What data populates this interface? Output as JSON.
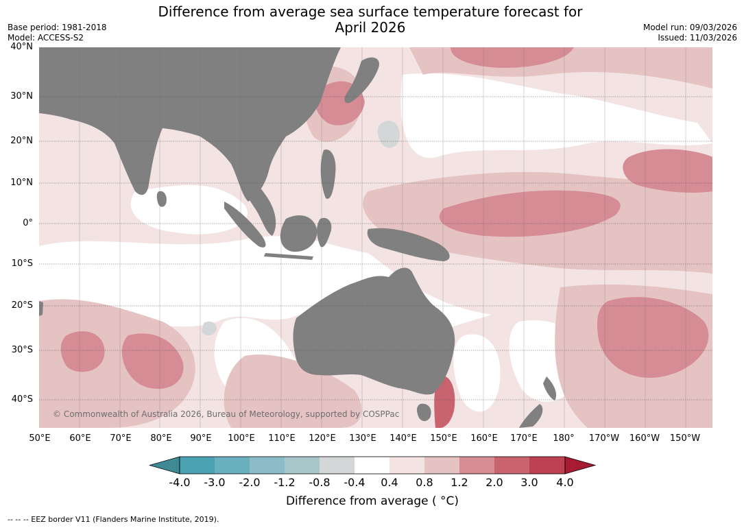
{
  "title": {
    "line1": "Difference from average sea surface temperature forecast for",
    "line2": "April 2026"
  },
  "meta": {
    "base_period": "Base period: 1981-2018",
    "model": "Model: ACCESS-S2",
    "model_run": "Model run: 09/03/2026",
    "issued": "Issued: 11/03/2026"
  },
  "latitude_labels": [
    "40°N",
    "30°N",
    "20°N",
    "10°N",
    "0°",
    "10°S",
    "20°S",
    "30°S",
    "40°S"
  ],
  "longitude_labels": [
    "50°E",
    "60°E",
    "70°E",
    "80°E",
    "90°E",
    "100°E",
    "110°E",
    "120°E",
    "130°E",
    "140°E",
    "150°E",
    "160°E",
    "170°E",
    "180°",
    "170°W",
    "160°W",
    "150°W"
  ],
  "copyright": "© Commonwealth of Australia 2026, Bureau of Meteorology, supported by COSPPac",
  "colorbar": {
    "title": "Difference from average ( °C)",
    "labels": [
      "-4.0",
      "-3.0",
      "-2.0",
      "-1.2",
      "-0.8",
      "-0.4",
      "0.4",
      "0.8",
      "1.2",
      "2.0",
      "3.0",
      "4.0"
    ],
    "colors": [
      "#3d8a94",
      "#49a1b2",
      "#6aafbd",
      "#8cbcc7",
      "#a9c7cb",
      "#d4d7d7",
      "#ffffff",
      "#f3e4e3",
      "#e5c3c2",
      "#d68c94",
      "#c9646f",
      "#bd4150",
      "#a81c33"
    ]
  },
  "map_colors": {
    "land": "#808080",
    "anomaly_0_4_0_8": "#f3e4e3",
    "anomaly_0_8_1_2": "#e5c3c2",
    "anomaly_1_2_2_0": "#d68c94",
    "anomaly_2_0_3_0": "#c9646f",
    "anomaly_neg": "#d4d7d7"
  },
  "footnote": "--  --  -- EEZ border V11 (Flanders Marine Institute, 2019)."
}
